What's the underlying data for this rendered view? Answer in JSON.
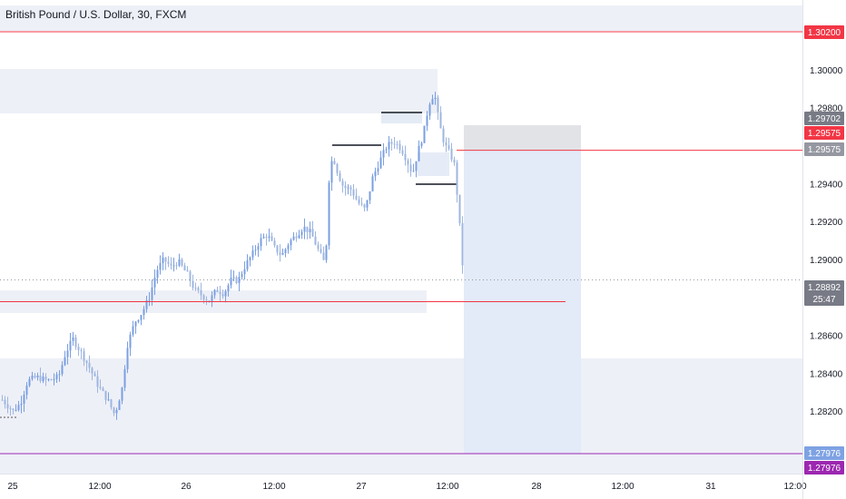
{
  "chart_title": "British Pound / U.S. Dollar, 30, FXCM",
  "chart_data": {
    "type": "candlestick",
    "symbol": "GBPUSD",
    "timeframe": "30",
    "source": "FXCM",
    "ylim": [
      1.2797,
      1.3033
    ],
    "yticks": [
      "1.30200",
      "1.30000",
      "1.29800",
      "1.29400",
      "1.29200",
      "1.29000",
      "1.28600",
      "1.28400",
      "1.28200"
    ],
    "xticks": [
      "25",
      "12:00",
      "26",
      "12:00",
      "27",
      "12:00",
      "28",
      "12:00",
      "31",
      "12:00"
    ],
    "price_labels": [
      {
        "text": "1.30200",
        "price": 1.302,
        "color": "#f23645"
      },
      {
        "text": "1.29702",
        "price": 1.29702,
        "color": "#787b86"
      },
      {
        "text": "1.29575",
        "price": 1.29575,
        "color": "#f23645"
      },
      {
        "text": "1.29575",
        "price": 1.29575,
        "color": "#9598a1"
      },
      {
        "text": "1.28892",
        "price": 1.28892,
        "color": "#787b86",
        "sub": "25:47"
      },
      {
        "text": "1.27976",
        "price": 1.27976,
        "color": "#7ea2e3"
      },
      {
        "text": "1.27976",
        "price": 1.27976,
        "color": "#9c27b0"
      }
    ],
    "horizontal_lines": [
      {
        "price": 1.302,
        "color": "#f23645"
      },
      {
        "price": 1.29575,
        "color": "#f23645"
      },
      {
        "price": 1.28777,
        "color": "#f23645"
      },
      {
        "price": 1.27976,
        "color": "#9c27b0"
      }
    ],
    "colors": {
      "up": "#7b9fe0",
      "down": "#9fb6df",
      "zone": "#eef0f7",
      "position": "#e3eaf8",
      "stop": "#e2e3e7"
    }
  }
}
